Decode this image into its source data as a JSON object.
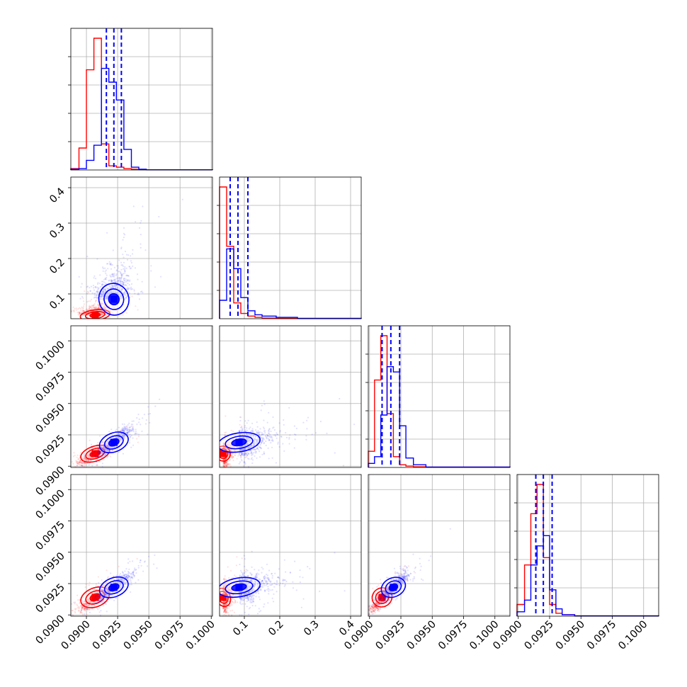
{
  "chart_data": {
    "type": "scatter",
    "title": "",
    "grid": true,
    "params": [
      {
        "ticks": [
          0.09,
          0.0925,
          0.095,
          0.0975,
          0.1
        ],
        "tick_labels": [
          "0.0900",
          "0.0925",
          "0.0950",
          "0.0975",
          "0.1000"
        ],
        "range": [
          0.08875,
          0.1001
        ]
      },
      {
        "ticks": [
          0.1,
          0.2,
          0.3,
          0.4
        ],
        "tick_labels": [
          "0.1",
          "0.2",
          "0.3",
          "0.4"
        ],
        "range": [
          0.03,
          0.43
        ]
      },
      {
        "ticks": [
          0.09,
          0.0925,
          0.095,
          0.0975,
          0.1
        ],
        "tick_labels": [
          "0.0900",
          "0.0925",
          "0.0950",
          "0.0975",
          "0.1000"
        ],
        "range": [
          0.0899,
          0.1012
        ]
      },
      {
        "ticks": [
          0.09,
          0.0925,
          0.095,
          0.0975,
          0.1
        ],
        "tick_labels": [
          "0.0900",
          "0.0925",
          "0.0950",
          "0.0975",
          "0.1000"
        ],
        "range": [
          0.0899,
          0.1012
        ]
      }
    ],
    "series": [
      {
        "color": "#ff0000",
        "centers": [
          0.0907,
          0.04,
          0.091,
          0.0914
        ],
        "spreads": [
          0.0006,
          0.01,
          0.0004,
          0.0005
        ],
        "hist_edges": [
          [
            0.08875,
            0.0894,
            0.09,
            0.0906,
            0.0912,
            0.0918,
            0.0924,
            0.093,
            0.0936,
            0.0942,
            0.0948,
            0.1001
          ],
          [
            0.03,
            0.05,
            0.07,
            0.09,
            0.11,
            0.13,
            0.15,
            0.19,
            0.25,
            0.43
          ],
          [
            0.0899,
            0.0904,
            0.0909,
            0.0914,
            0.0919,
            0.0924,
            0.0929,
            0.0935,
            0.0945,
            0.1012
          ],
          [
            0.0899,
            0.0905,
            0.091,
            0.0915,
            0.092,
            0.0925,
            0.093,
            0.0935,
            0.0945,
            0.1012
          ]
        ],
        "hist_counts": [
          [
            1,
            16,
            73,
            96,
            19,
            3,
            2,
            1,
            0.5,
            0.3,
            0.1
          ],
          [
            100,
            55,
            12,
            4,
            2,
            1,
            0.5,
            0.3,
            0.1
          ],
          [
            12,
            65,
            98,
            40,
            8,
            2,
            1,
            0.5,
            0.2
          ],
          [
            8,
            35,
            70,
            90,
            40,
            8,
            2,
            1,
            0.2
          ]
        ]
      },
      {
        "color": "#0000ff",
        "centers": [
          0.0922,
          0.085,
          0.0919,
          0.0922
        ],
        "spreads": [
          0.0006,
          0.03,
          0.0005,
          0.0005
        ],
        "hist_edges": [
          [
            0.08875,
            0.0894,
            0.09,
            0.0906,
            0.0912,
            0.0918,
            0.0924,
            0.093,
            0.0936,
            0.0942,
            0.0948,
            0.1001
          ],
          [
            0.03,
            0.05,
            0.07,
            0.09,
            0.11,
            0.13,
            0.15,
            0.19,
            0.25,
            0.43
          ],
          [
            0.0899,
            0.0904,
            0.0909,
            0.0914,
            0.0919,
            0.0924,
            0.0929,
            0.0935,
            0.0945,
            0.1012
          ],
          [
            0.0899,
            0.0905,
            0.091,
            0.0915,
            0.092,
            0.0925,
            0.093,
            0.0935,
            0.0945,
            0.1012
          ]
        ],
        "hist_counts": [
          [
            0.5,
            1,
            7,
            18,
            74,
            64,
            51,
            15,
            2,
            0.5,
            0.1
          ],
          [
            14,
            53,
            38,
            16,
            6,
            3,
            2,
            1,
            0.3
          ],
          [
            3,
            8,
            39,
            75,
            71,
            31,
            7,
            2,
            0.3
          ],
          [
            3,
            11,
            35,
            48,
            55,
            18,
            5,
            1,
            0.2
          ]
        ]
      }
    ],
    "quantile_lines": {
      "color": "#0000ff",
      "values": [
        [
          0.0916,
          0.0922,
          0.0928
        ],
        [
          0.06,
          0.082,
          0.11
        ],
        [
          0.091,
          0.0917,
          0.0924
        ],
        [
          0.0914,
          0.092,
          0.0927
        ]
      ]
    }
  }
}
